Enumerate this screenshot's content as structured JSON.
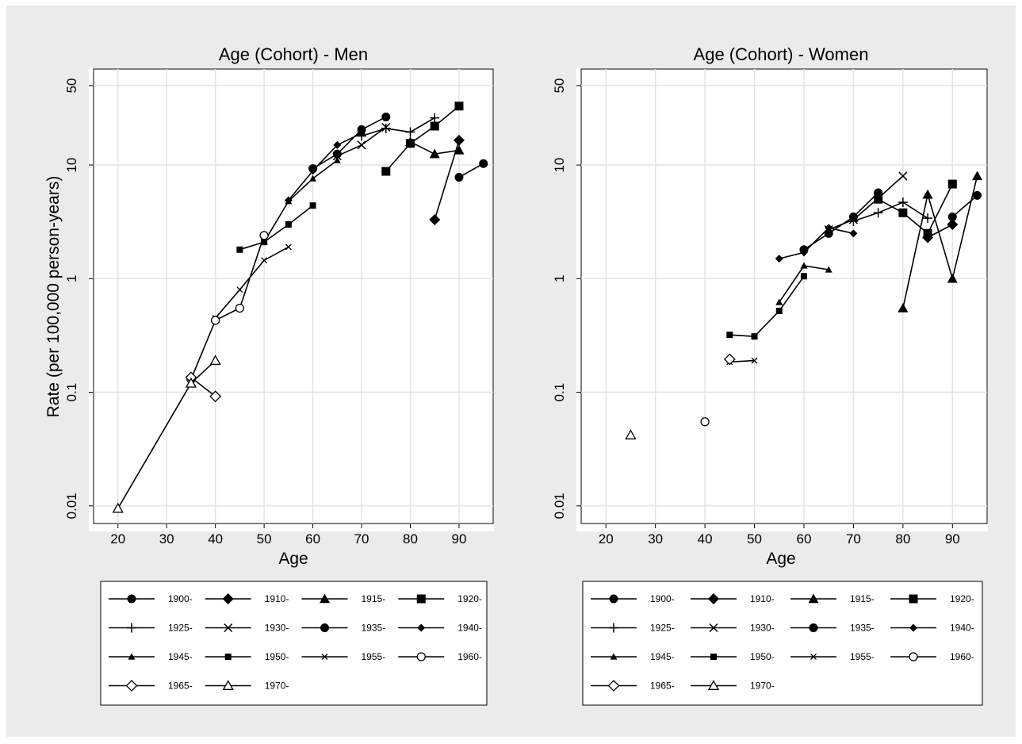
{
  "colors": {
    "background": "#ebebeb",
    "plot_area": "#ffffff",
    "grid": "#e4e4e4",
    "ink": "#000000"
  },
  "chart_data": [
    {
      "type": "line",
      "title": "Age (Cohort) - Men",
      "xlabel": "Age",
      "ylabel": "Rate (per 100,000 person-years)",
      "yscale": "log",
      "xlim": [
        15,
        97
      ],
      "ylim": [
        0.007,
        70
      ],
      "xticks": [
        20,
        30,
        40,
        50,
        60,
        70,
        80,
        90
      ],
      "yticks": [
        0.01,
        0.1,
        1,
        10,
        50
      ],
      "ytick_labels": [
        "0.01",
        "0.1",
        "1",
        "10",
        "50"
      ],
      "grid": true,
      "legend_position": "bottom",
      "series": [
        {
          "name": "1900-",
          "marker": "circle-filled",
          "points": [
            [
              90,
              7.8
            ],
            [
              95,
              10.3
            ]
          ]
        },
        {
          "name": "1910-",
          "marker": "diamond-filled",
          "points": [
            [
              85,
              3.3
            ],
            [
              90,
              16.5
            ]
          ]
        },
        {
          "name": "1915-",
          "marker": "triangle-filled",
          "points": [
            [
              80,
              16.0
            ],
            [
              85,
              12.5
            ],
            [
              90,
              13.5
            ]
          ]
        },
        {
          "name": "1920-",
          "marker": "square-filled",
          "points": [
            [
              75,
              8.8
            ],
            [
              80,
              15.5
            ],
            [
              85,
              22.0
            ],
            [
              90,
              33.0
            ]
          ]
        },
        {
          "name": "1925-",
          "marker": "plus",
          "points": [
            [
              70,
              18.0
            ],
            [
              75,
              21.0
            ],
            [
              80,
              19.5
            ],
            [
              85,
              26.0
            ]
          ]
        },
        {
          "name": "1930-",
          "marker": "x",
          "points": [
            [
              65,
              12.0
            ],
            [
              70,
              15.0
            ],
            [
              75,
              21.5
            ]
          ]
        },
        {
          "name": "1935-",
          "marker": "circle-filled",
          "points": [
            [
              60,
              9.3
            ],
            [
              65,
              12.5
            ],
            [
              70,
              20.5
            ],
            [
              75,
              26.5
            ]
          ]
        },
        {
          "name": "1940-",
          "marker": "diamond-filled-small",
          "points": [
            [
              55,
              4.9
            ],
            [
              60,
              8.9
            ],
            [
              65,
              15.0
            ],
            [
              70,
              19.0
            ]
          ]
        },
        {
          "name": "1945-",
          "marker": "triangle-filled-small",
          "points": [
            [
              50,
              2.1
            ],
            [
              55,
              4.8
            ],
            [
              60,
              7.6
            ],
            [
              65,
              11.0
            ]
          ]
        },
        {
          "name": "1950-",
          "marker": "square-filled-small",
          "points": [
            [
              45,
              1.8
            ],
            [
              50,
              2.1
            ],
            [
              55,
              3.0
            ],
            [
              60,
              4.4
            ]
          ]
        },
        {
          "name": "1955-",
          "marker": "x-small",
          "points": [
            [
              40,
              0.45
            ],
            [
              45,
              0.8
            ],
            [
              50,
              1.45
            ],
            [
              55,
              1.9
            ]
          ]
        },
        {
          "name": "1960-",
          "marker": "circle-hollow",
          "points": [
            [
              35,
              0.13
            ],
            [
              40,
              0.43
            ],
            [
              45,
              0.55
            ],
            [
              50,
              2.4
            ]
          ]
        },
        {
          "name": "1965-",
          "marker": "diamond-hollow",
          "points": [
            [
              35,
              0.135
            ],
            [
              40,
              0.092
            ]
          ]
        },
        {
          "name": "1970-",
          "marker": "triangle-hollow",
          "points": [
            [
              20,
              0.0095
            ],
            [
              35,
              0.12
            ],
            [
              40,
              0.19
            ]
          ]
        }
      ]
    },
    {
      "type": "line",
      "title": "Age (Cohort) - Women",
      "xlabel": "Age",
      "ylabel": "",
      "yscale": "log",
      "xlim": [
        15,
        97
      ],
      "ylim": [
        0.007,
        70
      ],
      "xticks": [
        20,
        30,
        40,
        50,
        60,
        70,
        80,
        90
      ],
      "yticks": [
        0.01,
        0.1,
        1,
        10,
        50
      ],
      "ytick_labels": [
        "0.01",
        "0.1",
        "1",
        "10",
        "50"
      ],
      "grid": true,
      "legend_position": "bottom",
      "series": [
        {
          "name": "1900-",
          "marker": "circle-filled",
          "points": [
            [
              90,
              3.5
            ],
            [
              95,
              5.4
            ]
          ]
        },
        {
          "name": "1910-",
          "marker": "diamond-filled",
          "points": [
            [
              85,
              2.3
            ],
            [
              90,
              3.0
            ]
          ]
        },
        {
          "name": "1915-",
          "marker": "triangle-filled",
          "points": [
            [
              80,
              0.55
            ],
            [
              85,
              5.5
            ],
            [
              90,
              1.0
            ],
            [
              95,
              8.0
            ]
          ]
        },
        {
          "name": "1920-",
          "marker": "square-filled",
          "points": [
            [
              75,
              5.0
            ],
            [
              80,
              3.8
            ],
            [
              85,
              2.5
            ],
            [
              90,
              6.8
            ]
          ]
        },
        {
          "name": "1925-",
          "marker": "plus",
          "points": [
            [
              70,
              3.2
            ],
            [
              75,
              3.8
            ],
            [
              80,
              4.7
            ],
            [
              85,
              3.4
            ]
          ]
        },
        {
          "name": "1930-",
          "marker": "x",
          "points": [
            [
              65,
              2.7
            ],
            [
              70,
              3.3
            ],
            [
              75,
              5.1
            ],
            [
              80,
              8.0
            ]
          ]
        },
        {
          "name": "1935-",
          "marker": "circle-filled",
          "points": [
            [
              60,
              1.8
            ],
            [
              65,
              2.5
            ],
            [
              70,
              3.5
            ],
            [
              75,
              5.7
            ]
          ]
        },
        {
          "name": "1940-",
          "marker": "diamond-filled-small",
          "points": [
            [
              55,
              1.5
            ],
            [
              60,
              1.7
            ],
            [
              65,
              2.8
            ],
            [
              70,
              2.5
            ]
          ]
        },
        {
          "name": "1945-",
          "marker": "triangle-filled-small",
          "points": [
            [
              55,
              0.62
            ],
            [
              60,
              1.3
            ],
            [
              65,
              1.2
            ]
          ]
        },
        {
          "name": "1950-",
          "marker": "square-filled-small",
          "points": [
            [
              45,
              0.32
            ],
            [
              50,
              0.31
            ],
            [
              55,
              0.52
            ],
            [
              60,
              1.05
            ]
          ]
        },
        {
          "name": "1955-",
          "marker": "x-small",
          "points": [
            [
              45,
              0.185
            ],
            [
              50,
              0.19
            ]
          ]
        },
        {
          "name": "1960-",
          "marker": "circle-hollow",
          "points": [
            [
              40,
              0.055
            ]
          ]
        },
        {
          "name": "1965-",
          "marker": "diamond-hollow",
          "points": [
            [
              45,
              0.195
            ]
          ]
        },
        {
          "name": "1970-",
          "marker": "triangle-hollow",
          "points": [
            [
              25,
              0.042
            ]
          ]
        }
      ]
    }
  ]
}
